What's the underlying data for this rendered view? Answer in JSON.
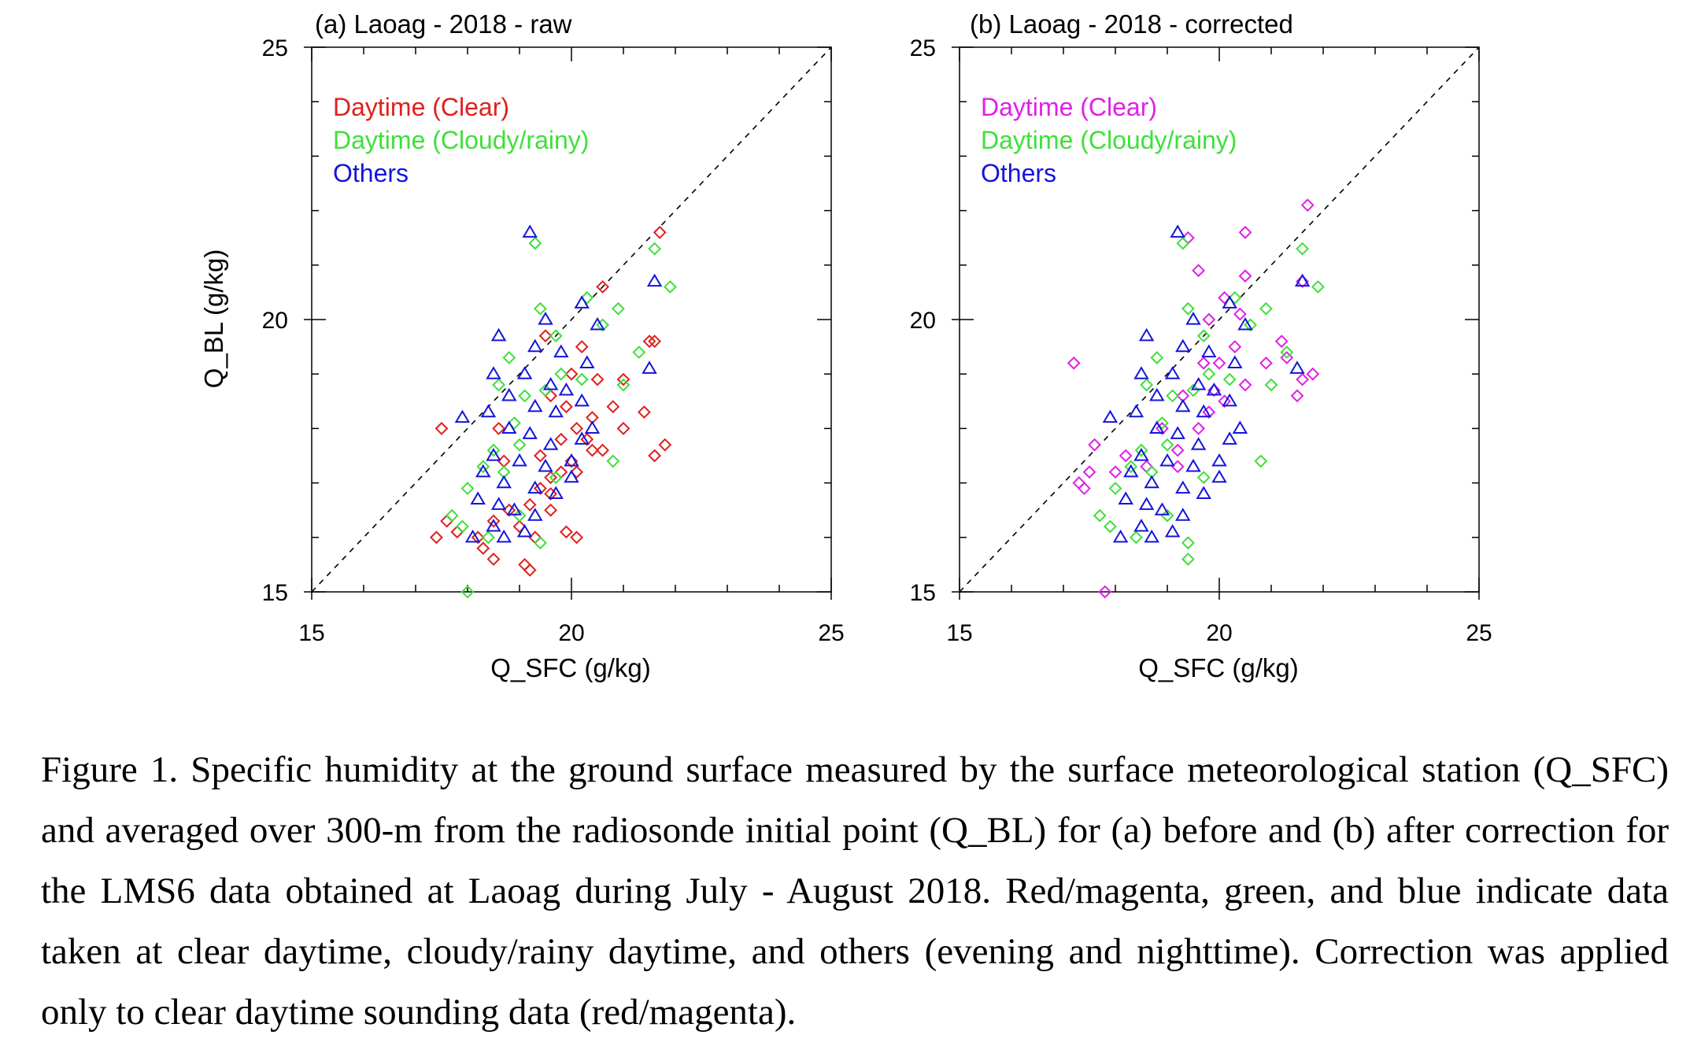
{
  "figure": {
    "caption": "Figure 1. Specific humidity at the ground surface measured by the surface meteorological station (Q_SFC) and averaged over 300-m from the radiosonde initial point (Q_BL) for (a) before and (b) after correction for the LMS6 data obtained at Laoag during July - August 2018. Red/magenta, green, and blue indicate data taken at clear daytime, cloudy/rainy daytime, and others (evening and nighttime). Correction was applied only to clear daytime sounding data (red/magenta)."
  },
  "colors": {
    "clear_raw": "#e0201c",
    "clear_corrected": "#e020e8",
    "cloudy": "#3ee03a",
    "others": "#1414dc",
    "axis": "#000000"
  },
  "chart_data": [
    {
      "type": "scatter",
      "title": "(a) Laoag - 2018 - raw",
      "xlabel": "Q_SFC (g/kg)",
      "ylabel": "Q_BL (g/kg)",
      "xlim": [
        15,
        25
      ],
      "ylim": [
        15,
        25
      ],
      "xticks": [
        15,
        20,
        25
      ],
      "yticks": [
        15,
        20,
        25
      ],
      "reference_line": "1:1 dashed",
      "legend_position": "top-left",
      "series": [
        {
          "name": "Daytime (Clear)",
          "marker": "diamond",
          "color": "#e0201c",
          "points": [
            [
              21.7,
              21.6
            ],
            [
              20.6,
              20.6
            ],
            [
              21.6,
              19.6
            ],
            [
              21.5,
              19.6
            ],
            [
              20.2,
              19.5
            ],
            [
              19.5,
              19.7
            ],
            [
              20.0,
              19.0
            ],
            [
              20.5,
              18.9
            ],
            [
              21.0,
              18.9
            ],
            [
              20.8,
              18.4
            ],
            [
              21.4,
              18.3
            ],
            [
              20.4,
              18.2
            ],
            [
              19.6,
              18.6
            ],
            [
              19.9,
              18.4
            ],
            [
              20.1,
              18.0
            ],
            [
              21.0,
              18.0
            ],
            [
              20.3,
              17.8
            ],
            [
              20.6,
              17.6
            ],
            [
              21.8,
              17.7
            ],
            [
              21.6,
              17.5
            ],
            [
              19.8,
              17.8
            ],
            [
              20.0,
              17.4
            ],
            [
              19.6,
              17.1
            ],
            [
              20.1,
              17.2
            ],
            [
              19.4,
              16.9
            ],
            [
              19.6,
              16.8
            ],
            [
              19.2,
              16.6
            ],
            [
              19.6,
              16.5
            ],
            [
              19.0,
              16.2
            ],
            [
              19.3,
              16.0
            ],
            [
              18.8,
              16.5
            ],
            [
              18.5,
              16.3
            ],
            [
              18.2,
              16.0
            ],
            [
              17.6,
              16.3
            ],
            [
              17.4,
              16.0
            ],
            [
              17.8,
              16.1
            ],
            [
              18.3,
              15.8
            ],
            [
              18.5,
              15.6
            ],
            [
              19.1,
              15.5
            ],
            [
              19.2,
              15.4
            ],
            [
              19.9,
              16.1
            ],
            [
              20.1,
              16.0
            ],
            [
              17.5,
              18.0
            ],
            [
              18.6,
              18.0
            ],
            [
              18.7,
              17.4
            ],
            [
              19.4,
              17.5
            ],
            [
              19.8,
              17.2
            ],
            [
              20.4,
              17.6
            ]
          ]
        },
        {
          "name": "Daytime (Cloudy/rainy)",
          "marker": "diamond",
          "color": "#3ee03a",
          "points": [
            [
              19.3,
              21.4
            ],
            [
              21.6,
              21.3
            ],
            [
              21.9,
              20.6
            ],
            [
              20.3,
              20.4
            ],
            [
              19.4,
              20.2
            ],
            [
              20.9,
              20.2
            ],
            [
              21.3,
              19.4
            ],
            [
              19.8,
              19.0
            ],
            [
              20.2,
              18.9
            ],
            [
              21.0,
              18.8
            ],
            [
              18.6,
              18.8
            ],
            [
              19.1,
              18.6
            ],
            [
              19.5,
              18.7
            ],
            [
              18.9,
              18.1
            ],
            [
              19.0,
              17.7
            ],
            [
              18.5,
              17.6
            ],
            [
              18.3,
              17.3
            ],
            [
              18.7,
              17.2
            ],
            [
              19.7,
              17.1
            ],
            [
              20.8,
              17.4
            ],
            [
              18.0,
              16.9
            ],
            [
              17.7,
              16.4
            ],
            [
              17.9,
              16.2
            ],
            [
              18.4,
              16.0
            ],
            [
              19.0,
              16.4
            ],
            [
              19.4,
              15.9
            ],
            [
              18.0,
              15.0
            ],
            [
              19.7,
              19.7
            ],
            [
              20.6,
              19.9
            ],
            [
              18.8,
              19.3
            ]
          ]
        },
        {
          "name": "Others",
          "marker": "triangle",
          "color": "#1414dc",
          "points": [
            [
              19.2,
              21.6
            ],
            [
              21.6,
              20.7
            ],
            [
              20.2,
              20.3
            ],
            [
              19.5,
              20.0
            ],
            [
              20.5,
              19.9
            ],
            [
              18.6,
              19.7
            ],
            [
              19.3,
              19.5
            ],
            [
              19.8,
              19.4
            ],
            [
              20.3,
              19.2
            ],
            [
              21.5,
              19.1
            ],
            [
              18.5,
              19.0
            ],
            [
              19.1,
              19.0
            ],
            [
              19.6,
              18.8
            ],
            [
              18.8,
              18.6
            ],
            [
              19.3,
              18.4
            ],
            [
              19.7,
              18.3
            ],
            [
              20.2,
              18.5
            ],
            [
              18.4,
              18.3
            ],
            [
              17.9,
              18.2
            ],
            [
              18.8,
              18.0
            ],
            [
              19.2,
              17.9
            ],
            [
              19.6,
              17.7
            ],
            [
              20.2,
              17.8
            ],
            [
              18.5,
              17.5
            ],
            [
              19.0,
              17.4
            ],
            [
              19.5,
              17.3
            ],
            [
              20.0,
              17.1
            ],
            [
              18.3,
              17.2
            ],
            [
              18.7,
              17.0
            ],
            [
              19.3,
              16.9
            ],
            [
              19.7,
              16.8
            ],
            [
              18.2,
              16.7
            ],
            [
              18.6,
              16.6
            ],
            [
              18.9,
              16.5
            ],
            [
              19.3,
              16.4
            ],
            [
              18.5,
              16.2
            ],
            [
              18.1,
              16.0
            ],
            [
              18.7,
              16.0
            ],
            [
              19.1,
              16.1
            ],
            [
              20.0,
              17.4
            ],
            [
              20.4,
              18.0
            ],
            [
              19.9,
              18.7
            ]
          ]
        }
      ]
    },
    {
      "type": "scatter",
      "title": "(b) Laoag - 2018 - corrected",
      "xlabel": "Q_SFC (g/kg)",
      "ylabel": "",
      "xlim": [
        15,
        25
      ],
      "ylim": [
        15,
        25
      ],
      "xticks": [
        15,
        20,
        25
      ],
      "yticks": [
        15,
        20,
        25
      ],
      "reference_line": "1:1 dashed",
      "legend_position": "top-left",
      "series": [
        {
          "name": "Daytime (Clear)",
          "marker": "diamond",
          "color": "#e020e8",
          "points": [
            [
              21.7,
              22.1
            ],
            [
              20.5,
              21.6
            ],
            [
              19.4,
              21.5
            ],
            [
              19.6,
              20.9
            ],
            [
              20.5,
              20.8
            ],
            [
              21.6,
              20.7
            ],
            [
              20.1,
              20.4
            ],
            [
              19.8,
              20.0
            ],
            [
              20.4,
              20.1
            ],
            [
              21.2,
              19.6
            ],
            [
              21.3,
              19.3
            ],
            [
              20.9,
              19.2
            ],
            [
              21.8,
              19.0
            ],
            [
              21.6,
              18.9
            ],
            [
              21.5,
              18.6
            ],
            [
              20.3,
              19.5
            ],
            [
              20.0,
              19.2
            ],
            [
              20.5,
              18.8
            ],
            [
              19.7,
              19.2
            ],
            [
              19.9,
              18.7
            ],
            [
              20.1,
              18.5
            ],
            [
              19.8,
              18.3
            ],
            [
              19.3,
              18.6
            ],
            [
              19.6,
              18.0
            ],
            [
              18.9,
              18.0
            ],
            [
              19.2,
              17.6
            ],
            [
              18.6,
              17.3
            ],
            [
              18.2,
              17.5
            ],
            [
              18.0,
              17.2
            ],
            [
              17.5,
              17.2
            ],
            [
              17.3,
              17.0
            ],
            [
              17.4,
              16.9
            ],
            [
              17.6,
              17.7
            ],
            [
              17.2,
              19.2
            ],
            [
              17.8,
              15.0
            ],
            [
              19.2,
              17.3
            ]
          ]
        },
        {
          "name": "Daytime (Cloudy/rainy)",
          "marker": "diamond",
          "color": "#3ee03a",
          "points": [
            [
              19.3,
              21.4
            ],
            [
              21.6,
              21.3
            ],
            [
              21.9,
              20.6
            ],
            [
              20.3,
              20.4
            ],
            [
              19.4,
              20.2
            ],
            [
              20.9,
              20.2
            ],
            [
              21.3,
              19.4
            ],
            [
              19.8,
              19.0
            ],
            [
              20.2,
              18.9
            ],
            [
              21.0,
              18.8
            ],
            [
              18.6,
              18.8
            ],
            [
              19.1,
              18.6
            ],
            [
              19.5,
              18.7
            ],
            [
              18.9,
              18.1
            ],
            [
              19.0,
              17.7
            ],
            [
              18.5,
              17.6
            ],
            [
              18.3,
              17.3
            ],
            [
              18.7,
              17.2
            ],
            [
              19.7,
              17.1
            ],
            [
              20.8,
              17.4
            ],
            [
              18.0,
              16.9
            ],
            [
              17.7,
              16.4
            ],
            [
              17.9,
              16.2
            ],
            [
              18.4,
              16.0
            ],
            [
              19.0,
              16.4
            ],
            [
              19.4,
              15.9
            ],
            [
              19.4,
              15.6
            ],
            [
              19.7,
              19.7
            ],
            [
              20.6,
              19.9
            ],
            [
              18.8,
              19.3
            ]
          ]
        },
        {
          "name": "Others",
          "marker": "triangle",
          "color": "#1414dc",
          "points": [
            [
              19.2,
              21.6
            ],
            [
              21.6,
              20.7
            ],
            [
              20.2,
              20.3
            ],
            [
              19.5,
              20.0
            ],
            [
              20.5,
              19.9
            ],
            [
              18.6,
              19.7
            ],
            [
              19.3,
              19.5
            ],
            [
              19.8,
              19.4
            ],
            [
              20.3,
              19.2
            ],
            [
              21.5,
              19.1
            ],
            [
              18.5,
              19.0
            ],
            [
              19.1,
              19.0
            ],
            [
              19.6,
              18.8
            ],
            [
              18.8,
              18.6
            ],
            [
              19.3,
              18.4
            ],
            [
              19.7,
              18.3
            ],
            [
              20.2,
              18.5
            ],
            [
              18.4,
              18.3
            ],
            [
              17.9,
              18.2
            ],
            [
              18.8,
              18.0
            ],
            [
              19.2,
              17.9
            ],
            [
              19.6,
              17.7
            ],
            [
              20.2,
              17.8
            ],
            [
              18.5,
              17.5
            ],
            [
              19.0,
              17.4
            ],
            [
              19.5,
              17.3
            ],
            [
              20.0,
              17.1
            ],
            [
              18.3,
              17.2
            ],
            [
              18.7,
              17.0
            ],
            [
              19.3,
              16.9
            ],
            [
              19.7,
              16.8
            ],
            [
              18.2,
              16.7
            ],
            [
              18.6,
              16.6
            ],
            [
              18.9,
              16.5
            ],
            [
              19.3,
              16.4
            ],
            [
              18.5,
              16.2
            ],
            [
              18.1,
              16.0
            ],
            [
              18.7,
              16.0
            ],
            [
              19.1,
              16.1
            ],
            [
              20.0,
              17.4
            ],
            [
              20.4,
              18.0
            ],
            [
              19.9,
              18.7
            ]
          ]
        }
      ]
    }
  ]
}
